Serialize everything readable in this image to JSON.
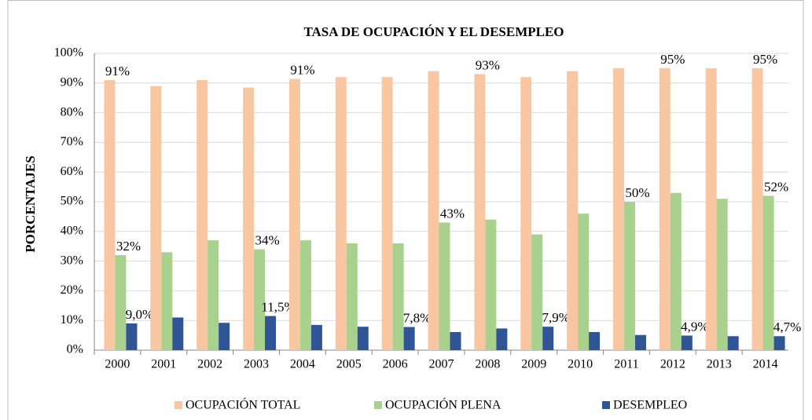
{
  "chart_data": {
    "type": "bar",
    "title": "TASA DE OCUPACIÓN  Y EL DESEMPLEO",
    "y_label": "PORCENTAJES",
    "categories": [
      "2000",
      "2001",
      "2002",
      "2003",
      "2004",
      "2005",
      "2006",
      "2007",
      "2008",
      "2009",
      "2010",
      "2011",
      "2012",
      "2013",
      "2014"
    ],
    "series": [
      {
        "name": "OCUPACIÓN TOTAL",
        "color": "#f9c6a2",
        "values": [
          91,
          89,
          91,
          88.5,
          91.4,
          92,
          92,
          94,
          93,
          92,
          94,
          95,
          95,
          95,
          95
        ],
        "value_labels": [
          "91%",
          null,
          null,
          null,
          "91%",
          null,
          null,
          null,
          "93%",
          null,
          null,
          null,
          "95%",
          null,
          "95%"
        ]
      },
      {
        "name": "OCUPACIÓN PLENA",
        "color": "#a8d18d",
        "values": [
          32,
          33,
          37,
          34,
          37,
          36,
          36,
          43,
          44,
          39,
          46,
          50,
          53,
          51,
          52
        ],
        "value_labels": [
          "32%",
          null,
          null,
          "34%",
          null,
          null,
          null,
          "43%",
          null,
          null,
          null,
          "50%",
          null,
          null,
          "52%"
        ]
      },
      {
        "name": "DESEMPLEO",
        "color": "#2f5597",
        "values": [
          9.0,
          11,
          9.2,
          11.5,
          8.5,
          7.9,
          7.8,
          6.1,
          7.3,
          7.9,
          6.1,
          5.1,
          4.9,
          4.7,
          4.7
        ],
        "value_labels": [
          "9,0%",
          null,
          null,
          "11,5%",
          null,
          null,
          "7,8%",
          null,
          null,
          "7,9%",
          null,
          null,
          "4,9%",
          null,
          "4,7%"
        ]
      }
    ],
    "ylim": [
      0,
      100
    ],
    "yticks": [
      {
        "value": 0,
        "label": "0%"
      },
      {
        "value": 10,
        "label": "10%"
      },
      {
        "value": 20,
        "label": "20%"
      },
      {
        "value": 30,
        "label": "30%"
      },
      {
        "value": 40,
        "label": "40%"
      },
      {
        "value": 50,
        "label": "50%"
      },
      {
        "value": 60,
        "label": "60%"
      },
      {
        "value": 70,
        "label": "70%"
      },
      {
        "value": 80,
        "label": "80%"
      },
      {
        "value": 90,
        "label": "90%"
      },
      {
        "value": 100,
        "label": "100%"
      }
    ],
    "grid": true,
    "legend": "bottom"
  }
}
